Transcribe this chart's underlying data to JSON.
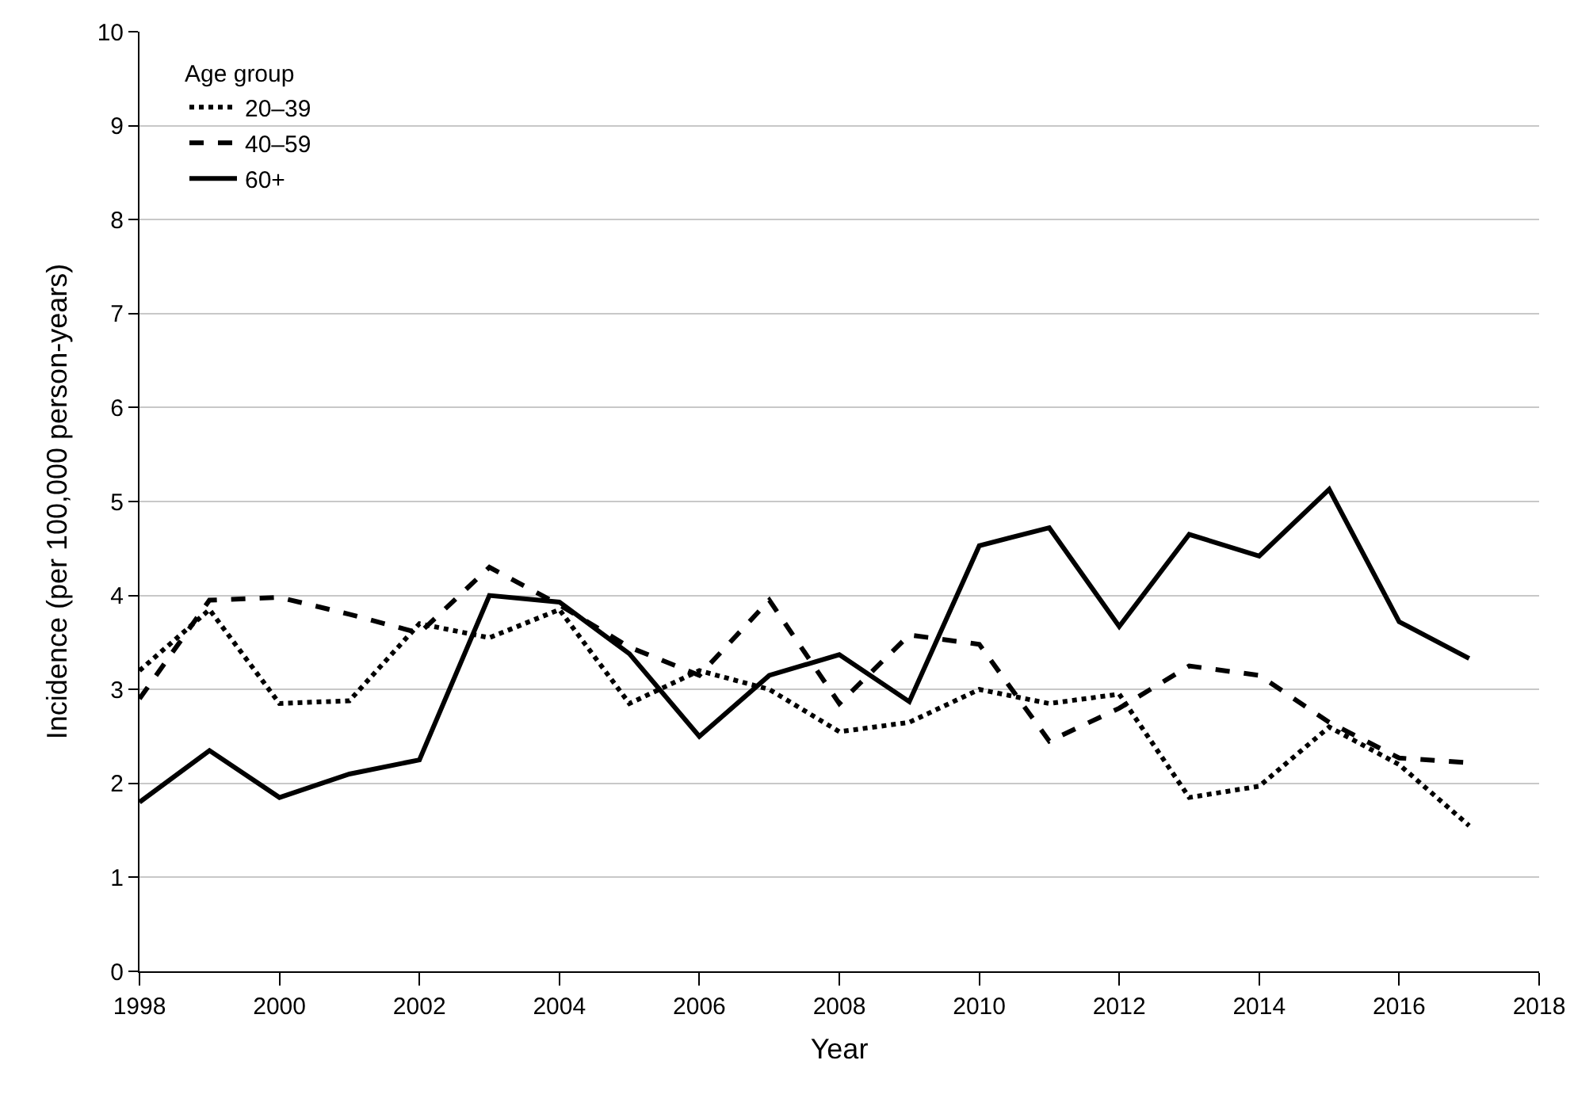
{
  "chart_data": {
    "type": "line",
    "xlabel": "Year",
    "ylabel": "Incidence (per 100,000 person-years)",
    "legend_title": "Age group",
    "legend": "top left",
    "grid": "y",
    "marker": "none",
    "x": [
      1998,
      1999,
      2000,
      2001,
      2002,
      2003,
      2004,
      2005,
      2006,
      2007,
      2008,
      2009,
      2010,
      2011,
      2012,
      2013,
      2014,
      2015,
      2016,
      2017
    ],
    "xlim": [
      1998,
      2018
    ],
    "xticks": [
      1998,
      2000,
      2002,
      2004,
      2006,
      2008,
      2010,
      2012,
      2014,
      2016,
      2018
    ],
    "ylim": [
      0,
      10
    ],
    "yticks": [
      0,
      1,
      2,
      3,
      4,
      5,
      6,
      7,
      8,
      9,
      10
    ],
    "series": [
      {
        "name": "20–39",
        "color": "#000000",
        "line_style": "dotted",
        "values": [
          3.2,
          3.85,
          2.85,
          2.88,
          3.7,
          3.55,
          3.85,
          2.85,
          3.2,
          3.0,
          2.55,
          2.65,
          3.0,
          2.85,
          2.95,
          1.85,
          1.97,
          2.6,
          2.2,
          1.55
        ]
      },
      {
        "name": "40–59",
        "color": "#000000",
        "line_style": "dashed",
        "values": [
          2.9,
          3.95,
          3.98,
          3.8,
          3.6,
          4.3,
          3.9,
          3.45,
          3.15,
          3.95,
          2.85,
          3.58,
          3.48,
          2.45,
          2.8,
          3.25,
          3.15,
          2.65,
          2.27,
          2.22
        ]
      },
      {
        "name": "60+",
        "color": "#000000",
        "line_style": "solid",
        "values": [
          1.8,
          2.35,
          1.85,
          2.1,
          2.25,
          4.0,
          3.93,
          3.38,
          2.5,
          3.15,
          3.37,
          2.87,
          4.53,
          4.72,
          3.67,
          4.65,
          4.42,
          5.13,
          3.72,
          3.33
        ]
      }
    ]
  }
}
